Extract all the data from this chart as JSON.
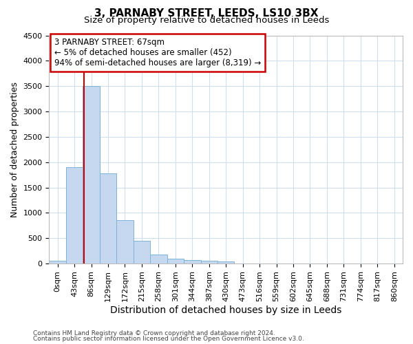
{
  "title": "3, PARNABY STREET, LEEDS, LS10 3BX",
  "subtitle": "Size of property relative to detached houses in Leeds",
  "xlabel": "Distribution of detached houses by size in Leeds",
  "ylabel": "Number of detached properties",
  "bar_labels": [
    "0sqm",
    "43sqm",
    "86sqm",
    "129sqm",
    "172sqm",
    "215sqm",
    "258sqm",
    "301sqm",
    "344sqm",
    "387sqm",
    "430sqm",
    "473sqm",
    "516sqm",
    "559sqm",
    "602sqm",
    "645sqm",
    "688sqm",
    "731sqm",
    "774sqm",
    "817sqm",
    "860sqm"
  ],
  "bar_values": [
    50,
    1900,
    3500,
    1780,
    850,
    450,
    175,
    95,
    70,
    55,
    45,
    0,
    0,
    0,
    0,
    0,
    0,
    0,
    0,
    0,
    0
  ],
  "bar_color": "#c5d8f0",
  "bar_edge_color": "#7ab3d9",
  "ylim": [
    0,
    4500
  ],
  "yticks": [
    0,
    500,
    1000,
    1500,
    2000,
    2500,
    3000,
    3500,
    4000,
    4500
  ],
  "vline_x": 1.55,
  "vline_color": "#cc0000",
  "annotation_text": "3 PARNABY STREET: 67sqm\n← 5% of detached houses are smaller (452)\n94% of semi-detached houses are larger (8,319) →",
  "annotation_box_color": "#ffffff",
  "annotation_border_color": "#cc0000",
  "footer_line1": "Contains HM Land Registry data © Crown copyright and database right 2024.",
  "footer_line2": "Contains public sector information licensed under the Open Government Licence v3.0.",
  "bg_color": "#ffffff",
  "grid_color": "#d0dff0",
  "title_fontsize": 11,
  "subtitle_fontsize": 9.5,
  "axis_label_fontsize": 9,
  "xlabel_fontsize": 10,
  "tick_fontsize": 8,
  "footer_fontsize": 6.5
}
